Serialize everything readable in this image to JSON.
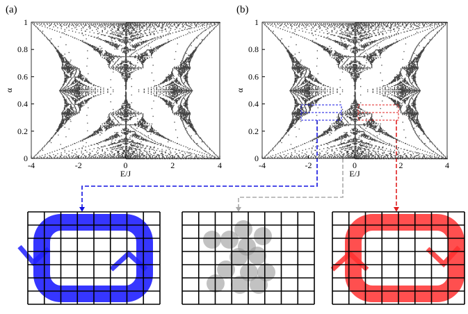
{
  "panels": [
    {
      "label": "(a)",
      "x_label": "E/J",
      "y_label": "α",
      "xlim": [
        -4,
        4
      ],
      "ylim": [
        0,
        1
      ],
      "xticks": [
        -4,
        -2,
        0,
        2,
        4
      ],
      "yticks": [
        0,
        0.2,
        0.4,
        0.6,
        0.8,
        1
      ]
    },
    {
      "label": "(b)",
      "x_label": "E/J",
      "y_label": "α",
      "xlim": [
        -4,
        4
      ],
      "ylim": [
        0,
        1
      ],
      "xticks": [
        -4,
        -2,
        0,
        2,
        4
      ],
      "yticks": [
        0,
        0.2,
        0.4,
        0.6,
        0.8,
        1
      ]
    }
  ]
}
